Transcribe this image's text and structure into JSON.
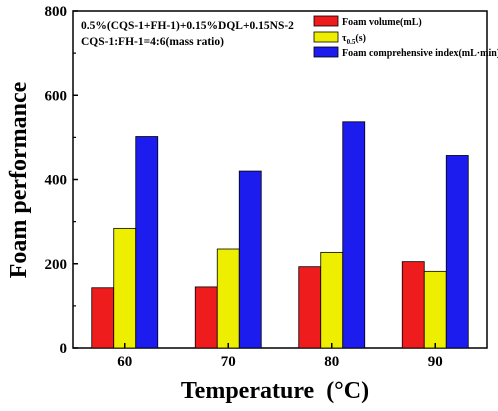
{
  "chart_data": {
    "type": "bar",
    "ylabel": "Foam performance",
    "xlabel": "Temperature  (°C)",
    "categories": [
      "60",
      "70",
      "80",
      "90"
    ],
    "ylim": [
      0,
      800
    ],
    "yticks": [
      "0",
      "200",
      "400",
      "600",
      "800"
    ],
    "series": [
      {
        "name": "Foam volume(mL)",
        "color": "#ee1c1c",
        "values": [
          143,
          145,
          193,
          205
        ]
      },
      {
        "name": "τ0.5(s)",
        "name_base": "τ",
        "name_sub": "0.5",
        "name_rest": "(s)",
        "color": "#eeee00",
        "values": [
          284,
          235,
          227,
          182
        ]
      },
      {
        "name": "Foam comprehensive index(mL·min)",
        "color": "#1c1cee",
        "values": [
          502,
          420,
          537,
          457
        ]
      }
    ],
    "annotation": [
      "0.5%(CQS-1+FH-1)+0.15%DQL+0.15NS-2",
      "CQS-1:FH-1=4:6(mass ratio)"
    ],
    "legend_position": "top-right",
    "grid": false
  }
}
